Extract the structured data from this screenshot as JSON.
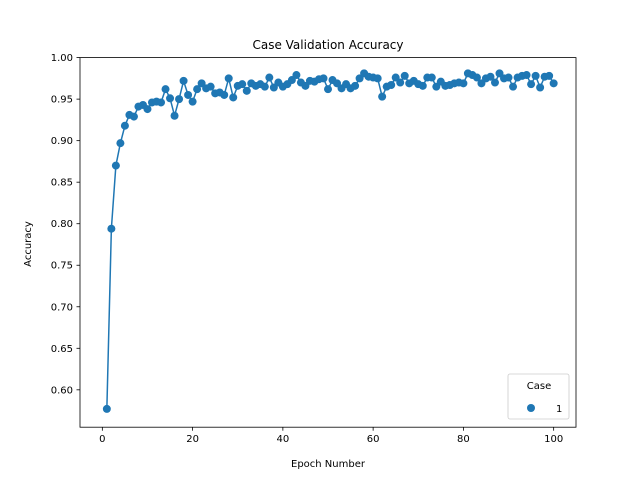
{
  "chart_data": {
    "type": "line",
    "title": "Case Validation Accuracy",
    "xlabel": "Epoch Number",
    "ylabel": "Accuracy",
    "xlim": [
      -4.95,
      104.95
    ],
    "ylim": [
      0.555,
      1.0
    ],
    "xticks": [
      "0",
      "20",
      "40",
      "60",
      "80",
      "100"
    ],
    "xtick_values": [
      0,
      20,
      40,
      60,
      80,
      100
    ],
    "yticks": [
      "0.60",
      "0.65",
      "0.70",
      "0.75",
      "0.80",
      "0.85",
      "0.90",
      "0.95",
      "1.00"
    ],
    "ytick_values": [
      0.6,
      0.65,
      0.7,
      0.75,
      0.8,
      0.85,
      0.9,
      0.95,
      1.0
    ],
    "grid": false,
    "legend": {
      "title": "Case",
      "placement": "lower-right"
    },
    "series": [
      {
        "name": "1",
        "color": "#1f77b4",
        "marker": "circle",
        "x": [
          1,
          2,
          3,
          4,
          5,
          6,
          7,
          8,
          9,
          10,
          11,
          12,
          13,
          14,
          15,
          16,
          17,
          18,
          19,
          20,
          21,
          22,
          23,
          24,
          25,
          26,
          27,
          28,
          29,
          30,
          31,
          32,
          33,
          34,
          35,
          36,
          37,
          38,
          39,
          40,
          41,
          42,
          43,
          44,
          45,
          46,
          47,
          48,
          49,
          50,
          51,
          52,
          53,
          54,
          55,
          56,
          57,
          58,
          59,
          60,
          61,
          62,
          63,
          64,
          65,
          66,
          67,
          68,
          69,
          70,
          71,
          72,
          73,
          74,
          75,
          76,
          77,
          78,
          79,
          80,
          81,
          82,
          83,
          84,
          85,
          86,
          87,
          88,
          89,
          90,
          91,
          92,
          93,
          94,
          95,
          96,
          97,
          98,
          99,
          100
        ],
        "y": [
          0.577,
          0.794,
          0.87,
          0.897,
          0.918,
          0.931,
          0.929,
          0.941,
          0.943,
          0.938,
          0.946,
          0.947,
          0.946,
          0.962,
          0.951,
          0.93,
          0.95,
          0.972,
          0.955,
          0.947,
          0.962,
          0.969,
          0.963,
          0.965,
          0.957,
          0.958,
          0.955,
          0.975,
          0.952,
          0.966,
          0.968,
          0.96,
          0.969,
          0.966,
          0.968,
          0.965,
          0.976,
          0.964,
          0.97,
          0.965,
          0.968,
          0.973,
          0.979,
          0.97,
          0.966,
          0.972,
          0.971,
          0.974,
          0.975,
          0.962,
          0.973,
          0.969,
          0.963,
          0.968,
          0.963,
          0.966,
          0.975,
          0.981,
          0.977,
          0.976,
          0.975,
          0.953,
          0.965,
          0.967,
          0.976,
          0.97,
          0.978,
          0.969,
          0.972,
          0.968,
          0.966,
          0.976,
          0.976,
          0.965,
          0.971,
          0.966,
          0.967,
          0.969,
          0.97,
          0.969,
          0.981,
          0.979,
          0.976,
          0.969,
          0.975,
          0.977,
          0.97,
          0.981,
          0.975,
          0.976,
          0.965,
          0.976,
          0.978,
          0.979,
          0.968,
          0.978,
          0.964,
          0.977,
          0.978,
          0.969
        ]
      }
    ]
  }
}
